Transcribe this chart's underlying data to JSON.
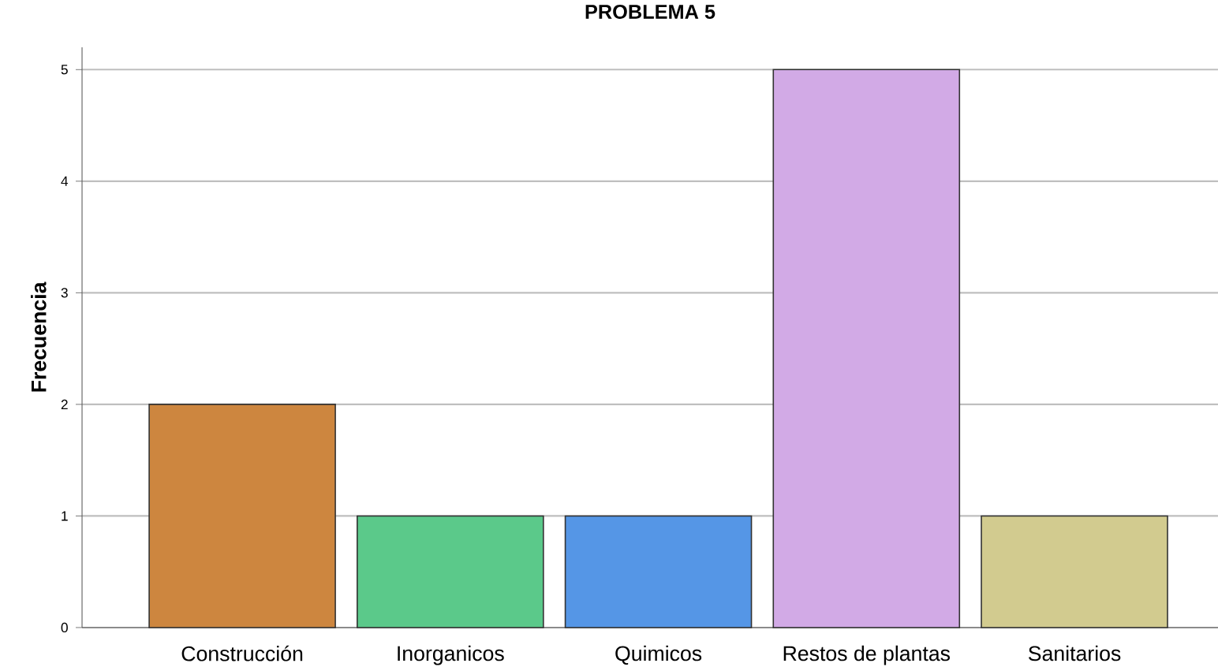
{
  "chart_data": {
    "type": "bar",
    "title": "PROBLEMA 5",
    "ylabel": "Frecuencia",
    "categories": [
      "Construcción",
      "Inorganicos",
      "Quimicos",
      "Restos de plantas",
      "Sanitarios"
    ],
    "values": [
      2,
      1,
      1,
      5,
      1
    ],
    "colors": [
      "#cd863f",
      "#5bc98a",
      "#5596e6",
      "#d2aae6",
      "#d2cb8f"
    ],
    "ylim": [
      0,
      5.2
    ],
    "yticks": [
      0,
      1,
      2,
      3,
      4,
      5
    ],
    "grid": "y"
  }
}
